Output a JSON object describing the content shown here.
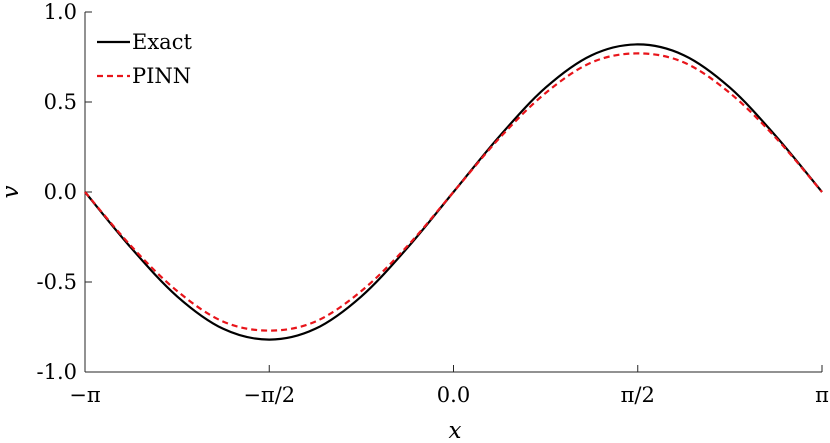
{
  "chart_data": {
    "type": "line",
    "title": "",
    "xlabel": "x",
    "ylabel": "v",
    "xlim": [
      -3.14159,
      3.14159
    ],
    "ylim": [
      -1.0,
      1.0
    ],
    "xticks": [
      {
        "value": -3.14159,
        "label": "−π"
      },
      {
        "value": -1.5708,
        "label": "−π/2"
      },
      {
        "value": 0.0,
        "label": "0.0"
      },
      {
        "value": 1.5708,
        "label": "π/2"
      },
      {
        "value": 3.14159,
        "label": "π"
      }
    ],
    "yticks": [
      {
        "value": -1.0,
        "label": "-1.0"
      },
      {
        "value": -0.5,
        "label": "-0.5"
      },
      {
        "value": 0.0,
        "label": "0.0"
      },
      {
        "value": 0.5,
        "label": "0.5"
      },
      {
        "value": 1.0,
        "label": "1.0"
      }
    ],
    "grid": false,
    "legend_position": "top-left",
    "series": [
      {
        "name": "Exact",
        "color": "#000000",
        "style": "solid",
        "x": [
          -3.14159,
          -2.74889,
          -2.35619,
          -1.9635,
          -1.5708,
          -1.1781,
          -0.7854,
          -0.3927,
          0.0,
          0.3927,
          0.7854,
          1.1781,
          1.5708,
          1.9635,
          2.35619,
          2.74889,
          3.14159
        ],
        "y": [
          0.0,
          -0.31,
          -0.58,
          -0.76,
          -0.82,
          -0.76,
          -0.58,
          -0.31,
          0.0,
          0.31,
          0.58,
          0.76,
          0.82,
          0.76,
          0.58,
          0.31,
          0.0
        ]
      },
      {
        "name": "PINN",
        "color": "#e8141a",
        "style": "dashed",
        "x": [
          -3.14159,
          -2.74889,
          -2.35619,
          -1.9635,
          -1.5708,
          -1.1781,
          -0.7854,
          -0.3927,
          0.0,
          0.3927,
          0.7854,
          1.1781,
          1.5708,
          1.9635,
          2.35619,
          2.74889,
          3.14159
        ],
        "y": [
          0.0,
          -0.3,
          -0.55,
          -0.72,
          -0.77,
          -0.72,
          -0.55,
          -0.3,
          0.0,
          0.3,
          0.55,
          0.72,
          0.77,
          0.72,
          0.55,
          0.3,
          0.0
        ]
      }
    ]
  }
}
